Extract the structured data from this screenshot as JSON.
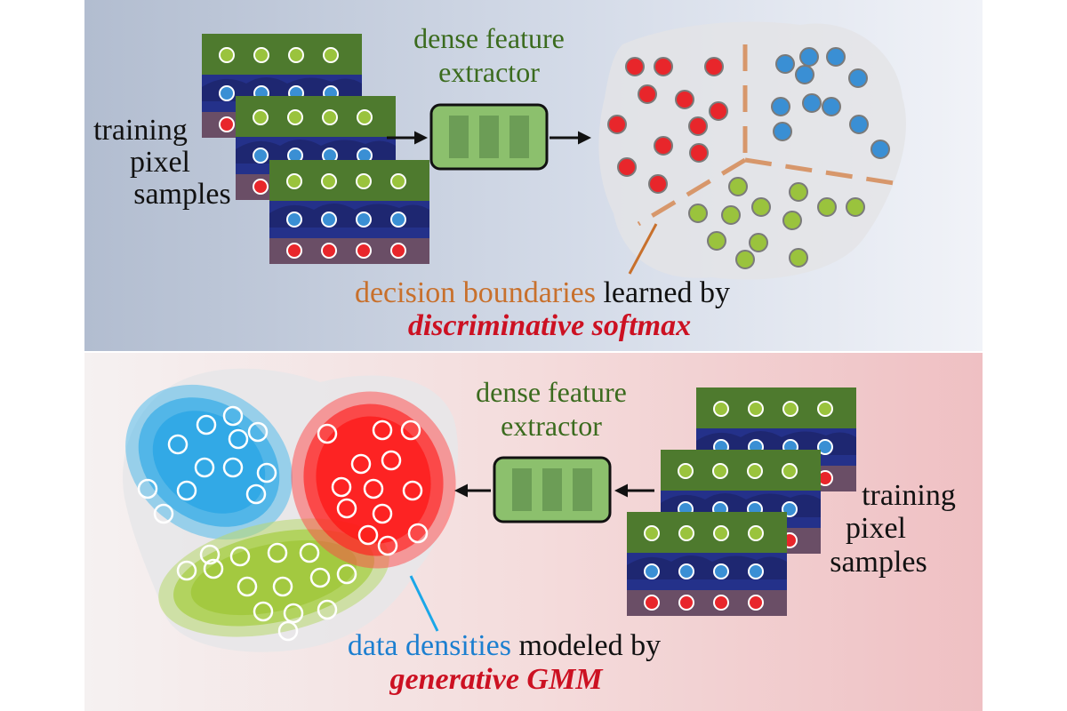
{
  "colors": {
    "top_bg_left": "#b4bfd1",
    "top_bg_right": "#eef1f7",
    "bottom_bg_left": "#f4eeee",
    "bottom_bg_right": "#efc3c5",
    "red_point": "#e8262b",
    "blue_point": "#3a8fd4",
    "green_point": "#9ac33d",
    "boundary": "#d7976b",
    "boundary_text": "#c8702c",
    "method_red": "#cc1122",
    "density_text": "#1c7fd0",
    "extractor_text": "#3b6b1e",
    "extractor_fill": "#8cc06d",
    "blue_density": "#34b1ea",
    "red_density": "#ff1f1f",
    "green_density": "#a3cd39"
  },
  "top": {
    "extractor_label_1": "dense feature",
    "extractor_label_2": "extractor",
    "samples_label_1": "training",
    "samples_label_2": "pixel",
    "samples_label_3": "samples",
    "caption_highlight": "decision boundaries",
    "caption_rest": " learned by",
    "method": "discriminative softmax"
  },
  "bottom": {
    "extractor_label_1": "dense feature",
    "extractor_label_2": "extractor",
    "samples_label_1": "training",
    "samples_label_2": "pixel",
    "samples_label_3": "samples",
    "caption_highlight": "data densities",
    "caption_rest": " modeled by",
    "method": "generative GMM"
  }
}
